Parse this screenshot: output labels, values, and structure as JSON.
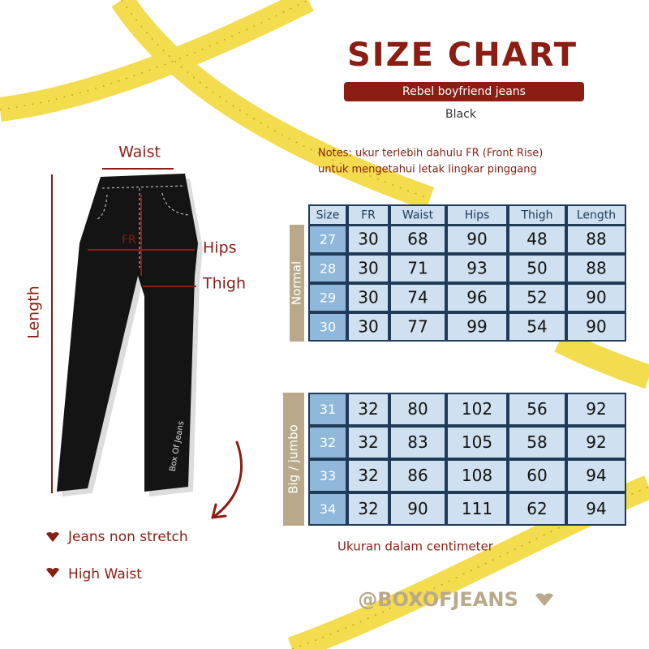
{
  "header": {
    "title": "SIZE CHART",
    "subtitle": "Rebel boyfriend jeans",
    "color_label": "Black"
  },
  "notes": [
    "Notes: ukur terlebih dahulu FR (Front Rise)",
    "untuk mengetahui letak lingkar pinggang"
  ],
  "diagram": {
    "waist": "Waist",
    "length": "Length",
    "fr": "FR",
    "hips": "Hips",
    "thigh": "Thigh",
    "brand_on_jeans": "Box Of Jeans"
  },
  "features": [
    "Jeans non stretch",
    "High Waist"
  ],
  "tables": [
    {
      "group": "Normal",
      "header": [
        "Size",
        "FR",
        "Waist",
        "Hips",
        "Thigh",
        "Length"
      ],
      "rows": [
        [
          27,
          30,
          68,
          90,
          48,
          88
        ],
        [
          28,
          30,
          71,
          93,
          50,
          88
        ],
        [
          29,
          30,
          74,
          96,
          52,
          90
        ],
        [
          30,
          30,
          77,
          99,
          54,
          90
        ]
      ]
    },
    {
      "group": "Big / jumbo",
      "rows": [
        [
          31,
          32,
          80,
          102,
          56,
          92
        ],
        [
          32,
          32,
          83,
          105,
          58,
          92
        ],
        [
          33,
          32,
          86,
          108,
          60,
          94
        ],
        [
          34,
          32,
          90,
          111,
          62,
          94
        ]
      ]
    }
  ],
  "unit_note": "Ukuran dalam centimeter",
  "handle": "@BOXOFJEANS"
}
